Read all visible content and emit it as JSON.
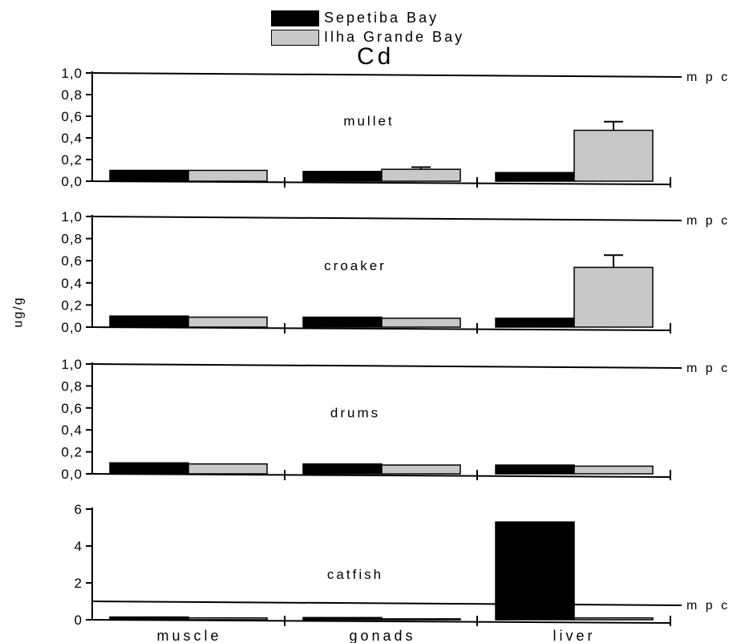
{
  "chart_data": {
    "type": "bar",
    "title": "Cd",
    "ylabel": "ug/g",
    "reference_line_label": "m p c",
    "reference_value": 1.0,
    "categories": [
      "muscle",
      "gonads",
      "liver"
    ],
    "legend": [
      {
        "name": "Sepetiba Bay",
        "color": "#000000"
      },
      {
        "name": "Ilha Grande Bay",
        "color": "#c8c8c8"
      }
    ],
    "panels": [
      {
        "name": "mullet",
        "ylim": [
          0,
          1.0
        ],
        "yticks": [
          "1,0",
          "0,8",
          "0,6",
          "0,4",
          "0,2",
          "0,0"
        ],
        "series": [
          {
            "name": "Sepetiba Bay",
            "values": [
              0.1,
              0.09,
              0.08
            ]
          },
          {
            "name": "Ilha Grande Bay",
            "values": [
              0.1,
              0.11,
              0.47
            ],
            "errors": [
              0,
              0.02,
              0.08
            ]
          }
        ]
      },
      {
        "name": "croaker",
        "ylim": [
          0,
          1.0
        ],
        "yticks": [
          "1,0",
          "0,8",
          "0,6",
          "0,4",
          "0,2",
          "0,0"
        ],
        "series": [
          {
            "name": "Sepetiba Bay",
            "values": [
              0.1,
              0.09,
              0.08
            ]
          },
          {
            "name": "Ilha Grande Bay",
            "values": [
              0.09,
              0.08,
              0.54
            ],
            "errors": [
              0,
              0,
              0.11
            ]
          }
        ]
      },
      {
        "name": "drums",
        "ylim": [
          0,
          1.0
        ],
        "yticks": [
          "1,0",
          "0,8",
          "0,6",
          "0,4",
          "0,2",
          "0,0"
        ],
        "series": [
          {
            "name": "Sepetiba Bay",
            "values": [
              0.1,
              0.09,
              0.08
            ]
          },
          {
            "name": "Ilha Grande Bay",
            "values": [
              0.09,
              0.08,
              0.07
            ]
          }
        ]
      },
      {
        "name": "catfish",
        "ylim": [
          0,
          6
        ],
        "yticks": [
          "6",
          "4",
          "2",
          "0"
        ],
        "series": [
          {
            "name": "Sepetiba Bay",
            "values": [
              0.15,
              0.12,
              5.3
            ]
          },
          {
            "name": "Ilha Grande Bay",
            "values": [
              0.1,
              0.05,
              0.1
            ]
          }
        ]
      }
    ]
  }
}
